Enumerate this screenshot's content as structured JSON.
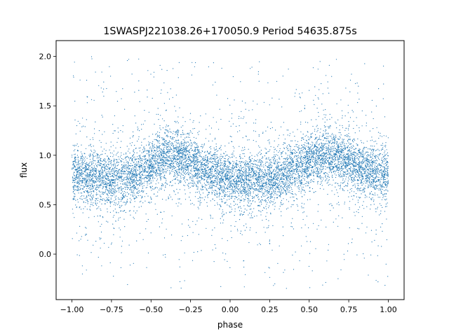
{
  "chart_data": {
    "type": "scatter",
    "title": "1SWASPJ221038.26+170050.9 Period 54635.875s",
    "xlabel": "phase",
    "ylabel": "flux",
    "xlim": [
      -1.1,
      1.1
    ],
    "ylim": [
      -0.46,
      2.16
    ],
    "xticks": [
      -1.0,
      -0.75,
      -0.5,
      -0.25,
      0.0,
      0.25,
      0.5,
      0.75,
      1.0
    ],
    "xtick_labels": [
      "−1.00",
      "−0.75",
      "−0.50",
      "−0.25",
      "0.00",
      "0.25",
      "0.50",
      "0.75",
      "1.00"
    ],
    "yticks": [
      0.0,
      0.5,
      1.0,
      1.5,
      2.0
    ],
    "ytick_labels": [
      "0.0",
      "0.5",
      "1.0",
      "1.5",
      "2.0"
    ],
    "grid": false,
    "legend": "none",
    "point_color": "#1f77b4",
    "series": [
      {
        "phase": [
          -1.0,
          -0.9,
          -0.8,
          -0.7,
          -0.6,
          -0.5,
          -0.4,
          -0.3,
          -0.2,
          -0.1,
          0.0,
          0.1,
          0.2,
          0.3,
          0.4,
          0.5,
          0.6,
          0.7,
          0.8,
          0.9,
          1.0
        ],
        "median_flux": [
          0.8,
          0.78,
          0.76,
          0.76,
          0.8,
          0.9,
          1.0,
          0.97,
          0.88,
          0.8,
          0.76,
          0.74,
          0.75,
          0.78,
          0.86,
          0.94,
          1.0,
          0.97,
          0.9,
          0.83,
          0.8
        ],
        "flux_range": [
          -0.35,
          2.02
        ]
      }
    ]
  }
}
